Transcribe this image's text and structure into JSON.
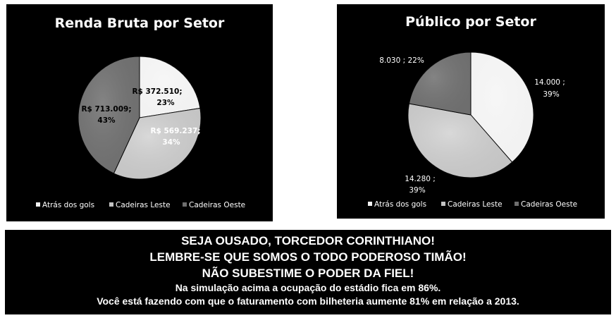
{
  "chart_data": [
    {
      "type": "pie",
      "title": "Renda Bruta por Setor",
      "categories": [
        "Atrás dos gols",
        "Cadeiras Leste",
        "Cadeiras Oeste"
      ],
      "values": [
        372510,
        569237,
        713009
      ],
      "value_labels": [
        "R$ 372.510;",
        "R$ 569.237;",
        "R$ 713.009;"
      ],
      "percent_labels": [
        "23%",
        "34%",
        "43%"
      ],
      "colors": [
        "#f2f2f2",
        "#c4c4c4",
        "#6e6e6e"
      ],
      "legend_position": "bottom"
    },
    {
      "type": "pie",
      "title": "Público por Setor",
      "categories": [
        "Atrás dos gols",
        "Cadeiras Leste",
        "Cadeiras Oeste"
      ],
      "values": [
        14000,
        14280,
        8030
      ],
      "value_labels": [
        "14.000 ;",
        "14.280 ;",
        "8.030 ; 22%"
      ],
      "percent_labels": [
        "39%",
        "39%",
        ""
      ],
      "colors": [
        "#f2f2f2",
        "#c4c4c4",
        "#6e6e6e"
      ],
      "legend_position": "bottom"
    }
  ],
  "banner": {
    "line1": "SEJA OUSADO, TORCEDOR CORINTHIANO!",
    "line2": "LEMBRE-SE QUE SOMOS O TODO PODEROSO TIMÃO!",
    "line3": "NÃO SUBESTIME O PODER DA FIEL!",
    "line4": "Na simulação acima a ocupação do estádio fica em 86%.",
    "line5": "Você está fazendo com que o faturamento com bilheteria aumente 81% em relação a 2013."
  }
}
